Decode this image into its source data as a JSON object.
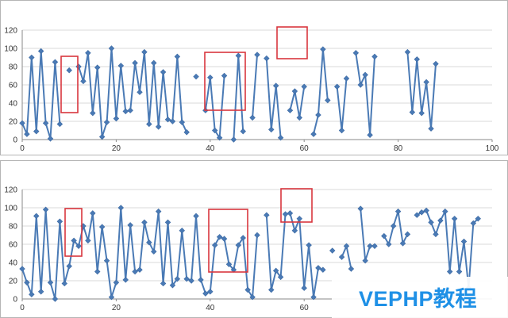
{
  "chart_data": [
    {
      "type": "line",
      "title": "",
      "xlabel": "",
      "ylabel": "",
      "xlim": [
        0,
        100
      ],
      "ylim": [
        0,
        120
      ],
      "x_ticks": [
        "0",
        "20",
        "40",
        "60",
        "80",
        "100"
      ],
      "y_ticks": [
        "0",
        "20",
        "40",
        "60",
        "80",
        "100",
        "120"
      ],
      "grid": true,
      "markers": "diamond",
      "color": "#4a7ab5",
      "x": [
        0,
        1,
        2,
        3,
        4,
        5,
        6,
        7,
        8,
        9,
        10,
        11,
        12,
        13,
        14,
        15,
        16,
        17,
        18,
        19,
        20,
        21,
        22,
        23,
        24,
        25,
        26,
        27,
        28,
        29,
        30,
        31,
        32,
        33,
        34,
        35,
        36,
        37,
        38,
        39,
        40,
        41,
        42,
        43,
        44,
        45,
        46,
        47,
        48,
        49,
        50,
        51,
        52,
        53,
        54,
        55,
        56,
        57,
        58,
        59,
        60,
        61,
        62,
        63,
        64,
        65,
        66,
        67,
        68,
        69,
        70,
        71,
        72,
        73,
        74,
        75,
        76,
        77,
        78,
        79,
        80,
        81,
        82,
        83,
        84,
        85,
        86,
        87,
        88,
        89,
        90,
        91,
        92,
        93,
        94,
        95,
        96,
        97,
        98,
        99,
        100
      ],
      "values": [
        18,
        6,
        90,
        9,
        97,
        18,
        1,
        85,
        17,
        null,
        76,
        null,
        80,
        64,
        95,
        29,
        79,
        3,
        19,
        100,
        23,
        81,
        31,
        32,
        84,
        52,
        96,
        17,
        84,
        14,
        74,
        22,
        20,
        91,
        19,
        8,
        null,
        69,
        null,
        32,
        68,
        10,
        2,
        70,
        null,
        0,
        92,
        9,
        null,
        24,
        93,
        null,
        89,
        11,
        59,
        2,
        null,
        32,
        53,
        24,
        58,
        null,
        6,
        27,
        99,
        43,
        null,
        58,
        10,
        67,
        null,
        95,
        60,
        71,
        5,
        91,
        null,
        null,
        null,
        null,
        null,
        null,
        96,
        30,
        88,
        29,
        63,
        12,
        83,
        null,
        null,
        null,
        null,
        null,
        null,
        null,
        null,
        null,
        null,
        null,
        null
      ]
    },
    {
      "type": "line",
      "title": "",
      "xlabel": "",
      "ylabel": "",
      "xlim": [
        0,
        100
      ],
      "ylim": [
        0,
        120
      ],
      "x_ticks": [
        "0",
        "20",
        "40",
        "60"
      ],
      "y_ticks": [
        "0",
        "20",
        "40",
        "60",
        "80",
        "100",
        "120"
      ],
      "grid": true,
      "markers": "diamond",
      "color": "#4a7ab5",
      "x": [
        0,
        1,
        2,
        3,
        4,
        5,
        6,
        7,
        8,
        9,
        10,
        11,
        12,
        13,
        14,
        15,
        16,
        17,
        18,
        19,
        20,
        21,
        22,
        23,
        24,
        25,
        26,
        27,
        28,
        29,
        30,
        31,
        32,
        33,
        34,
        35,
        36,
        37,
        38,
        39,
        40,
        41,
        42,
        43,
        44,
        45,
        46,
        47,
        48,
        49,
        50,
        51,
        52,
        53,
        54,
        55,
        56,
        57,
        58,
        59,
        60,
        61,
        62,
        63,
        64,
        65,
        66,
        67,
        68,
        69,
        70,
        71,
        72,
        73,
        74,
        75,
        76,
        77,
        78,
        79,
        80,
        81,
        82,
        83,
        84,
        85,
        86,
        87,
        88,
        89,
        90,
        91,
        92,
        93,
        94,
        95,
        96,
        97,
        98,
        99,
        100
      ],
      "values": [
        33,
        18,
        5,
        91,
        8,
        98,
        18,
        0,
        85,
        17,
        36,
        64,
        58,
        80,
        64,
        94,
        30,
        79,
        42,
        2,
        18,
        100,
        21,
        81,
        30,
        32,
        84,
        62,
        52,
        96,
        17,
        84,
        15,
        22,
        75,
        22,
        20,
        91,
        21,
        6,
        8,
        59,
        68,
        66,
        38,
        32,
        59,
        67,
        10,
        2,
        70,
        null,
        92,
        10,
        31,
        24,
        93,
        94,
        75,
        88,
        12,
        59,
        2,
        34,
        32,
        null,
        53,
        null,
        46,
        58,
        33,
        null,
        99,
        42,
        58,
        58,
        null,
        69,
        60,
        80,
        96,
        61,
        71,
        null,
        92,
        95,
        97,
        84,
        71,
        86,
        96,
        30,
        88,
        30,
        63,
        12,
        83,
        88,
        null,
        null,
        null
      ]
    }
  ],
  "watermark": {
    "text": "VEPHP教程"
  }
}
